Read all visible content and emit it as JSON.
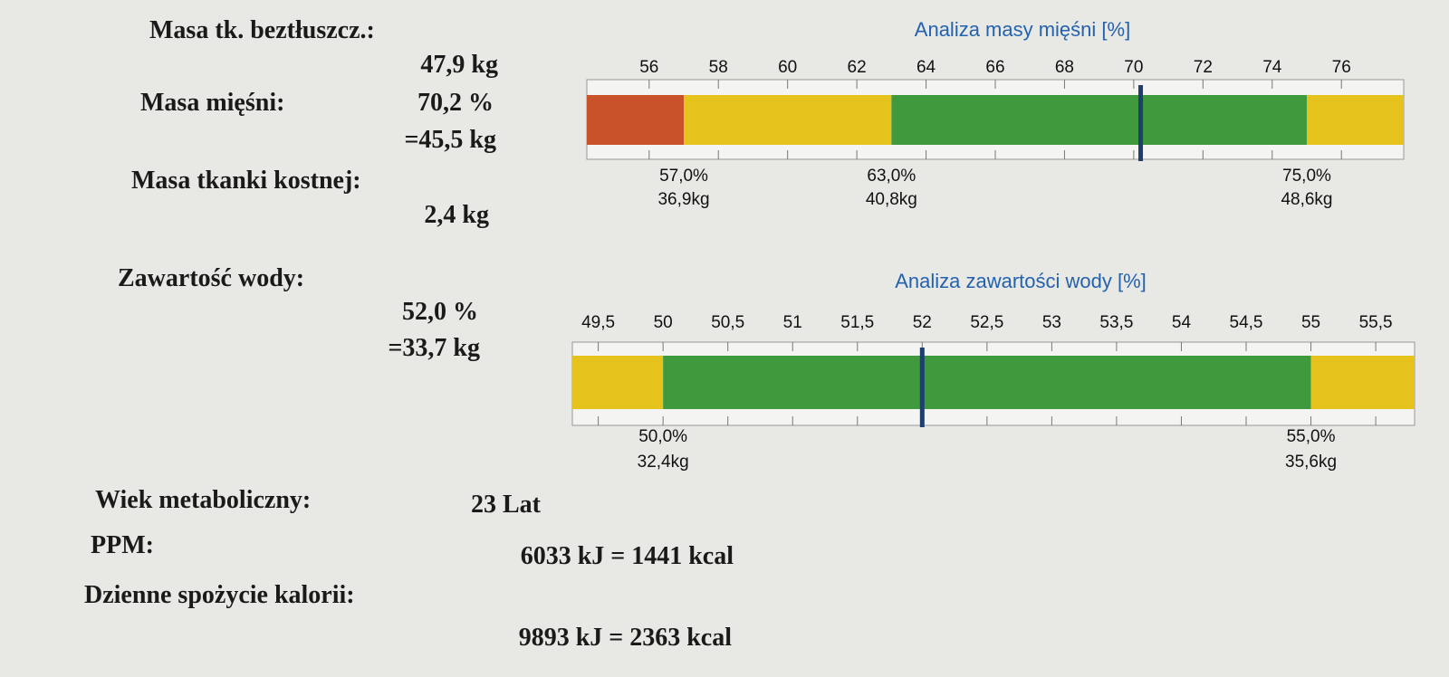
{
  "left": [
    {
      "label": "Masa tk. beztłuszcz.:",
      "values": [
        "47,9 kg"
      ]
    },
    {
      "label": "Masa mięśni:",
      "values": [
        "70,2 %",
        "=45,5 kg"
      ]
    },
    {
      "label": "Masa tkanki kostnej:",
      "values": [
        "2,4 kg"
      ]
    },
    {
      "label": "Zawartość wody:",
      "values": [
        "52,0 %",
        "=33,7 kg"
      ]
    }
  ],
  "gauges": [
    {
      "title": "Analiza masy mięśni [%]",
      "xlim": [
        54.2,
        77.8
      ],
      "xticks": [
        56,
        58,
        60,
        62,
        64,
        66,
        68,
        70,
        72,
        74,
        76
      ],
      "zone_colors": [
        "#c9522a",
        "#e6c21c",
        "#3e9a3c",
        "#e6c21c"
      ],
      "thresholds": [
        {
          "value": 57,
          "label": "57,0%",
          "kg": "36,9kg"
        },
        {
          "value": 63,
          "label": "63,0%",
          "kg": "40,8kg"
        },
        {
          "value": 75,
          "label": "75,0%",
          "kg": "48,6kg"
        }
      ],
      "marker": 70.2,
      "marker_color": "#1d3f6e"
    },
    {
      "title": "Analiza zawartości wody [%]",
      "xlim": [
        49.3,
        55.8
      ],
      "xticks": [
        {
          "value": 49.5,
          "label": "49,5"
        },
        50,
        {
          "value": 50.5,
          "label": "50,5"
        },
        51,
        {
          "value": 51.5,
          "label": "51,5"
        },
        52,
        {
          "value": 52.5,
          "label": "52,5"
        },
        53,
        {
          "value": 53.5,
          "label": "53,5"
        },
        54,
        {
          "value": 54.5,
          "label": "54,5"
        },
        55,
        {
          "value": 55.5,
          "label": "55,5"
        }
      ],
      "zone_colors": [
        "#e6c21c",
        "#3e9a3c",
        "#e6c21c"
      ],
      "thresholds": [
        {
          "value": 50,
          "label": "50,0%",
          "kg": "32,4kg"
        },
        {
          "value": 55,
          "label": "55,0%",
          "kg": "35,6kg"
        }
      ],
      "marker": 52,
      "marker_color": "#1d3f6e"
    }
  ],
  "bottom": [
    {
      "label": "Wiek metaboliczny:",
      "value": "23 Lat"
    },
    {
      "label": "PPM:",
      "value": "6033 kJ = 1441 kcal"
    },
    {
      "label": "Dzienne spożycie kalorii:",
      "value": "9893 kJ = 2363 kcal"
    }
  ]
}
